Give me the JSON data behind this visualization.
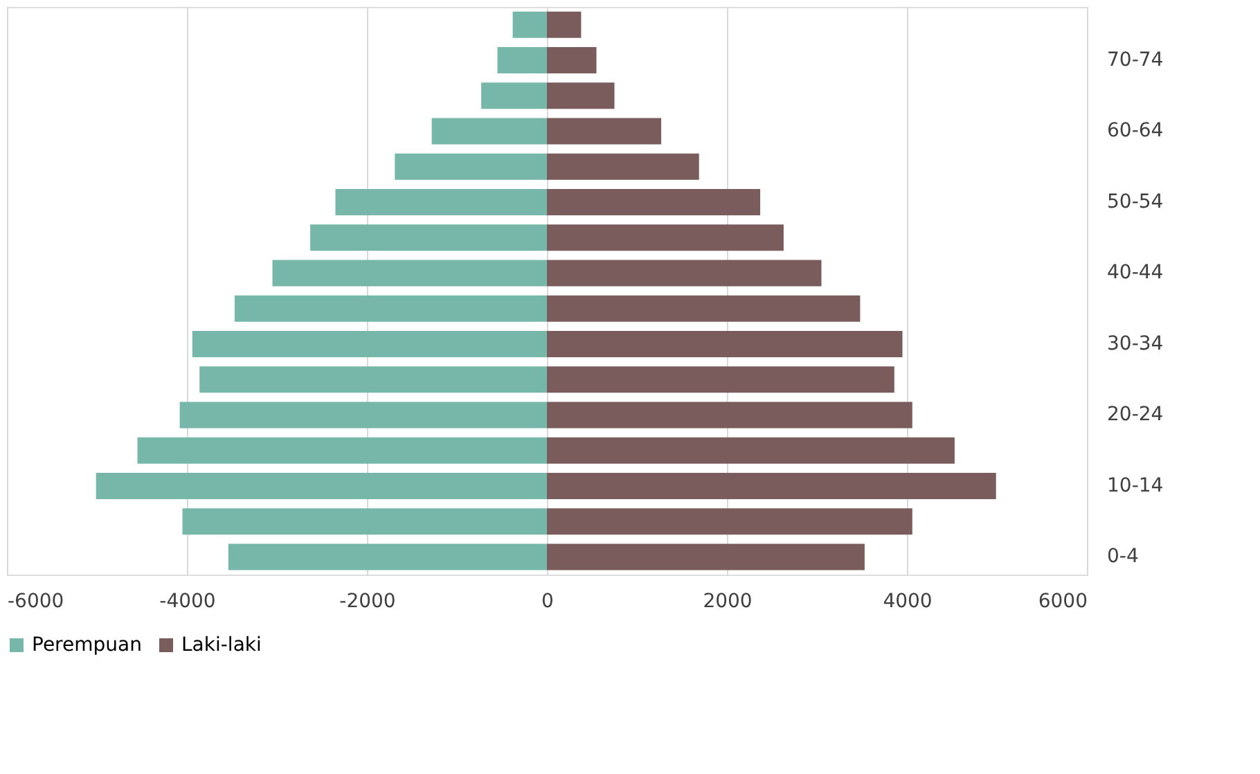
{
  "chart_data": {
    "type": "bar",
    "orientation": "horizontal",
    "categories": [
      null,
      "70-74",
      null,
      "60-64",
      null,
      "50-54",
      null,
      "40-44",
      null,
      "30-34",
      null,
      "20-24",
      null,
      "10-14",
      null,
      "0-4"
    ],
    "series": [
      {
        "name": "Perempuan",
        "color": "#76b7aa",
        "values": [
          -380,
          -550,
          -730,
          -1280,
          -1690,
          -2350,
          -2630,
          -3050,
          -3470,
          -3940,
          -3860,
          -4080,
          -4550,
          -5010,
          -4050,
          -3540
        ]
      },
      {
        "name": "Laki-laki",
        "color": "#7b5c5c",
        "values": [
          380,
          550,
          750,
          1270,
          1690,
          2370,
          2630,
          3050,
          3480,
          3950,
          3860,
          4060,
          4530,
          4990,
          4060,
          3530
        ]
      }
    ],
    "xlim": [
      -6000,
      6000
    ],
    "xticks": [
      -6000,
      -4000,
      -2000,
      0,
      2000,
      4000,
      6000
    ],
    "grid": "x",
    "legend": "bottom",
    "stacked": true
  }
}
